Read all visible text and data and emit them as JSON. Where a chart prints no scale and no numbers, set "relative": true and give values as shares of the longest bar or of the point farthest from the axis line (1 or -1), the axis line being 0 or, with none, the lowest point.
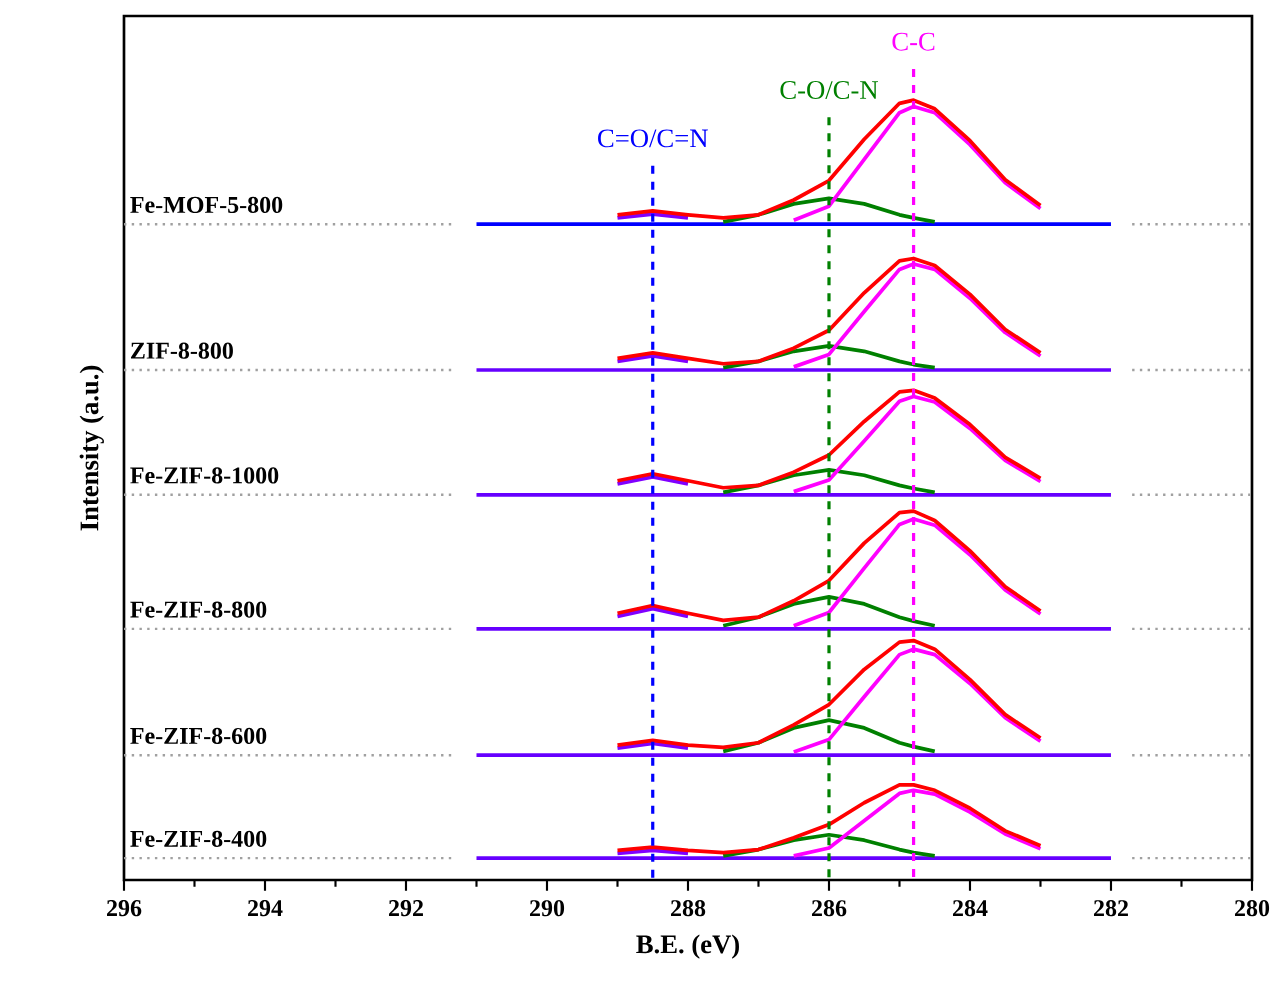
{
  "chart_data": {
    "type": "line",
    "relative": true,
    "xlabel": "B.E. (eV)",
    "ylabel": "Intensity (a.u.)",
    "xlim": [
      296,
      280
    ],
    "xticks": [
      296,
      294,
      292,
      290,
      288,
      286,
      284,
      282,
      280
    ],
    "marker": "none",
    "line_style": "solid",
    "ref_lines": [
      {
        "axis": "x",
        "value": 284.8,
        "label": "C-C",
        "color": "#ff00ff",
        "line_style": "dashed"
      },
      {
        "axis": "x",
        "value": 286,
        "label": "C-O/C-N",
        "color": "#008000",
        "line_style": "dashed"
      },
      {
        "axis": "x",
        "value": 288.5,
        "label": "C=O/C=N",
        "color": "#0000ff",
        "line_style": "dashed"
      }
    ],
    "series": [
      {
        "name": "Fe-MOF-5-800",
        "color": "#a0a0a0",
        "line_style": "dotted",
        "x": [
          296,
          291.3,
          286,
          281.7,
          280
        ],
        "values": [
          0.841,
          0.841,
          null,
          0.841,
          0.841
        ]
      },
      {
        "color": "#0000ff",
        "x": [
          291,
          282
        ],
        "values": [
          0.841,
          0.841
        ]
      },
      {
        "color": "#8000ff",
        "x": [
          289,
          288.5,
          288
        ],
        "values": [
          0.849,
          0.854,
          0.849
        ]
      },
      {
        "color": "#008000",
        "x": [
          287.5,
          287,
          286.5,
          286,
          285.5,
          285,
          284.8,
          284.5
        ],
        "values": [
          0.844,
          0.853,
          0.867,
          0.874,
          0.867,
          0.853,
          0.849,
          0.844
        ]
      },
      {
        "color": "#ff00ff",
        "x": [
          286.5,
          286,
          285.5,
          285,
          284.8,
          284.5,
          284,
          283.5,
          283
        ],
        "values": [
          0.846,
          0.864,
          0.924,
          0.984,
          0.992,
          0.984,
          0.943,
          0.894,
          0.861
        ]
      },
      {
        "color": "#ff0000",
        "x": [
          289,
          288.5,
          288,
          287.5,
          287,
          286.5,
          286,
          285.5,
          285,
          284.8,
          284.5,
          284,
          283.5,
          283
        ],
        "values": [
          0.853,
          0.858,
          0.853,
          0.849,
          0.853,
          0.872,
          0.897,
          0.95,
          0.996,
          1.0,
          0.989,
          0.948,
          0.898,
          0.865
        ]
      },
      {
        "name": "ZIF-8-800",
        "color": "#a0a0a0",
        "line_style": "dotted",
        "x": [
          296,
          291.3,
          286,
          281.7,
          280
        ],
        "values": [
          0.654,
          0.654,
          null,
          0.654,
          0.654
        ]
      },
      {
        "color": "#6600ff",
        "x": [
          291,
          282
        ],
        "values": [
          0.654,
          0.654
        ]
      },
      {
        "color": "#8000ff",
        "x": [
          289,
          288.5,
          288
        ],
        "values": [
          0.665,
          0.672,
          0.665
        ]
      },
      {
        "color": "#008000",
        "x": [
          287.5,
          287,
          286.5,
          286,
          285.5,
          285,
          284.8,
          284.5
        ],
        "values": [
          0.657,
          0.665,
          0.678,
          0.685,
          0.678,
          0.665,
          0.661,
          0.657
        ]
      },
      {
        "color": "#ff00ff",
        "x": [
          286.5,
          286,
          285.5,
          285,
          284.8,
          284.5,
          284,
          283.5,
          283
        ],
        "values": [
          0.658,
          0.674,
          0.729,
          0.783,
          0.79,
          0.783,
          0.746,
          0.702,
          0.672
        ]
      },
      {
        "color": "#ff0000",
        "x": [
          289,
          288.5,
          288,
          287.5,
          287,
          286.5,
          286,
          285.5,
          285,
          284.8,
          284.5,
          284,
          283.5,
          283
        ],
        "values": [
          0.669,
          0.676,
          0.669,
          0.662,
          0.665,
          0.682,
          0.705,
          0.753,
          0.794,
          0.797,
          0.788,
          0.751,
          0.706,
          0.676
        ]
      },
      {
        "name": "Fe-ZIF-8-1000",
        "color": "#a0a0a0",
        "line_style": "dotted",
        "x": [
          296,
          291.3,
          286,
          281.7,
          280
        ],
        "values": [
          0.494,
          0.494,
          null,
          0.494,
          0.494
        ]
      },
      {
        "color": "#6600ff",
        "x": [
          291,
          282
        ],
        "values": [
          0.494,
          0.494
        ]
      },
      {
        "color": "#8000ff",
        "x": [
          289,
          288.5,
          288
        ],
        "values": [
          0.508,
          0.517,
          0.508
        ]
      },
      {
        "color": "#008000",
        "x": [
          287.5,
          287,
          286.5,
          286,
          285.5,
          285,
          284.8,
          284.5
        ],
        "values": [
          0.497,
          0.506,
          0.519,
          0.526,
          0.519,
          0.506,
          0.502,
          0.497
        ]
      },
      {
        "color": "#ff00ff",
        "x": [
          286.5,
          286,
          285.5,
          285,
          284.8,
          284.5,
          284,
          283.5,
          283
        ],
        "values": [
          0.498,
          0.513,
          0.563,
          0.614,
          0.62,
          0.613,
          0.579,
          0.538,
          0.511
        ]
      },
      {
        "color": "#ff0000",
        "x": [
          289,
          288.5,
          288,
          287.5,
          287,
          286.5,
          286,
          285.5,
          285,
          284.8,
          284.5,
          284,
          283.5,
          283
        ],
        "values": [
          0.512,
          0.521,
          0.512,
          0.503,
          0.506,
          0.523,
          0.545,
          0.588,
          0.626,
          0.628,
          0.618,
          0.584,
          0.542,
          0.515
        ]
      },
      {
        "name": "Fe-ZIF-8-800",
        "color": "#a0a0a0",
        "line_style": "dotted",
        "x": [
          296,
          291.3,
          286,
          281.7,
          280
        ],
        "values": [
          0.322,
          0.322,
          null,
          0.322,
          0.322
        ]
      },
      {
        "color": "#6600ff",
        "x": [
          291,
          282
        ],
        "values": [
          0.322,
          0.322
        ]
      },
      {
        "color": "#8000ff",
        "x": [
          289,
          288.5,
          288
        ],
        "values": [
          0.338,
          0.348,
          0.338
        ]
      },
      {
        "color": "#008000",
        "x": [
          287.5,
          287,
          286.5,
          286,
          285.5,
          285,
          284.8,
          284.5
        ],
        "values": [
          0.326,
          0.337,
          0.354,
          0.363,
          0.354,
          0.337,
          0.332,
          0.326
        ]
      },
      {
        "color": "#ff00ff",
        "x": [
          286.5,
          286,
          285.5,
          285,
          284.8,
          284.5,
          284,
          283.5,
          283
        ],
        "values": [
          0.326,
          0.343,
          0.4,
          0.456,
          0.463,
          0.455,
          0.417,
          0.372,
          0.341
        ]
      },
      {
        "color": "#ff0000",
        "x": [
          289,
          288.5,
          288,
          287.5,
          287,
          286.5,
          286,
          285.5,
          285,
          284.8,
          284.5,
          284,
          283.5,
          283
        ],
        "values": [
          0.342,
          0.352,
          0.342,
          0.333,
          0.337,
          0.358,
          0.384,
          0.432,
          0.471,
          0.473,
          0.461,
          0.422,
          0.376,
          0.345
        ]
      },
      {
        "name": "Fe-ZIF-8-600",
        "color": "#a0a0a0",
        "line_style": "dotted",
        "x": [
          296,
          291.3,
          286,
          281.7,
          280
        ],
        "values": [
          0.16,
          0.16,
          null,
          0.16,
          0.16
        ]
      },
      {
        "color": "#6600ff",
        "x": [
          291,
          282
        ],
        "values": [
          0.16,
          0.16
        ]
      },
      {
        "color": "#8000ff",
        "x": [
          289,
          288.5,
          288
        ],
        "values": [
          0.169,
          0.175,
          0.169
        ]
      },
      {
        "color": "#008000",
        "x": [
          287.5,
          287,
          286.5,
          286,
          285.5,
          285,
          284.8,
          284.5
        ],
        "values": [
          0.165,
          0.176,
          0.195,
          0.205,
          0.195,
          0.176,
          0.171,
          0.165
        ]
      },
      {
        "color": "#ff00ff",
        "x": [
          286.5,
          286,
          285.5,
          285,
          284.8,
          284.5,
          284,
          283.5,
          283
        ],
        "values": [
          0.164,
          0.18,
          0.235,
          0.289,
          0.296,
          0.289,
          0.252,
          0.208,
          0.178
        ]
      },
      {
        "color": "#ff0000",
        "x": [
          289,
          288.5,
          288,
          287.5,
          287,
          286.5,
          286,
          285.5,
          285,
          284.8,
          284.5,
          284,
          283.5,
          283
        ],
        "values": [
          0.173,
          0.179,
          0.173,
          0.17,
          0.176,
          0.199,
          0.225,
          0.27,
          0.305,
          0.307,
          0.296,
          0.257,
          0.212,
          0.182
        ]
      },
      {
        "name": "Fe-ZIF-8-400",
        "color": "#a0a0a0",
        "line_style": "dotted",
        "x": [
          296,
          291.3,
          286,
          281.7,
          280
        ],
        "values": [
          0.028,
          0.028,
          null,
          0.028,
          0.028
        ]
      },
      {
        "color": "#6600ff",
        "x": [
          291,
          282
        ],
        "values": [
          0.028,
          0.028
        ]
      },
      {
        "color": "#8000ff",
        "x": [
          289,
          288.5,
          288
        ],
        "values": [
          0.034,
          0.038,
          0.034
        ]
      },
      {
        "color": "#008000",
        "x": [
          287.5,
          287,
          286.5,
          286,
          285.5,
          285,
          284.8,
          284.5
        ],
        "values": [
          0.031,
          0.039,
          0.051,
          0.058,
          0.051,
          0.039,
          0.035,
          0.031
        ]
      },
      {
        "color": "#ff00ff",
        "x": [
          286.5,
          286,
          285.5,
          285,
          284.8,
          284.5,
          284,
          283.5,
          283
        ],
        "values": [
          0.031,
          0.041,
          0.076,
          0.111,
          0.115,
          0.11,
          0.087,
          0.059,
          0.04
        ]
      },
      {
        "color": "#ff0000",
        "x": [
          289,
          288.5,
          288,
          287.5,
          287,
          286.5,
          286,
          285.5,
          285,
          284.8,
          284.5,
          284,
          283.5,
          283
        ],
        "values": [
          0.038,
          0.042,
          0.038,
          0.035,
          0.039,
          0.054,
          0.071,
          0.099,
          0.122,
          0.122,
          0.115,
          0.092,
          0.063,
          0.044
        ]
      }
    ]
  }
}
